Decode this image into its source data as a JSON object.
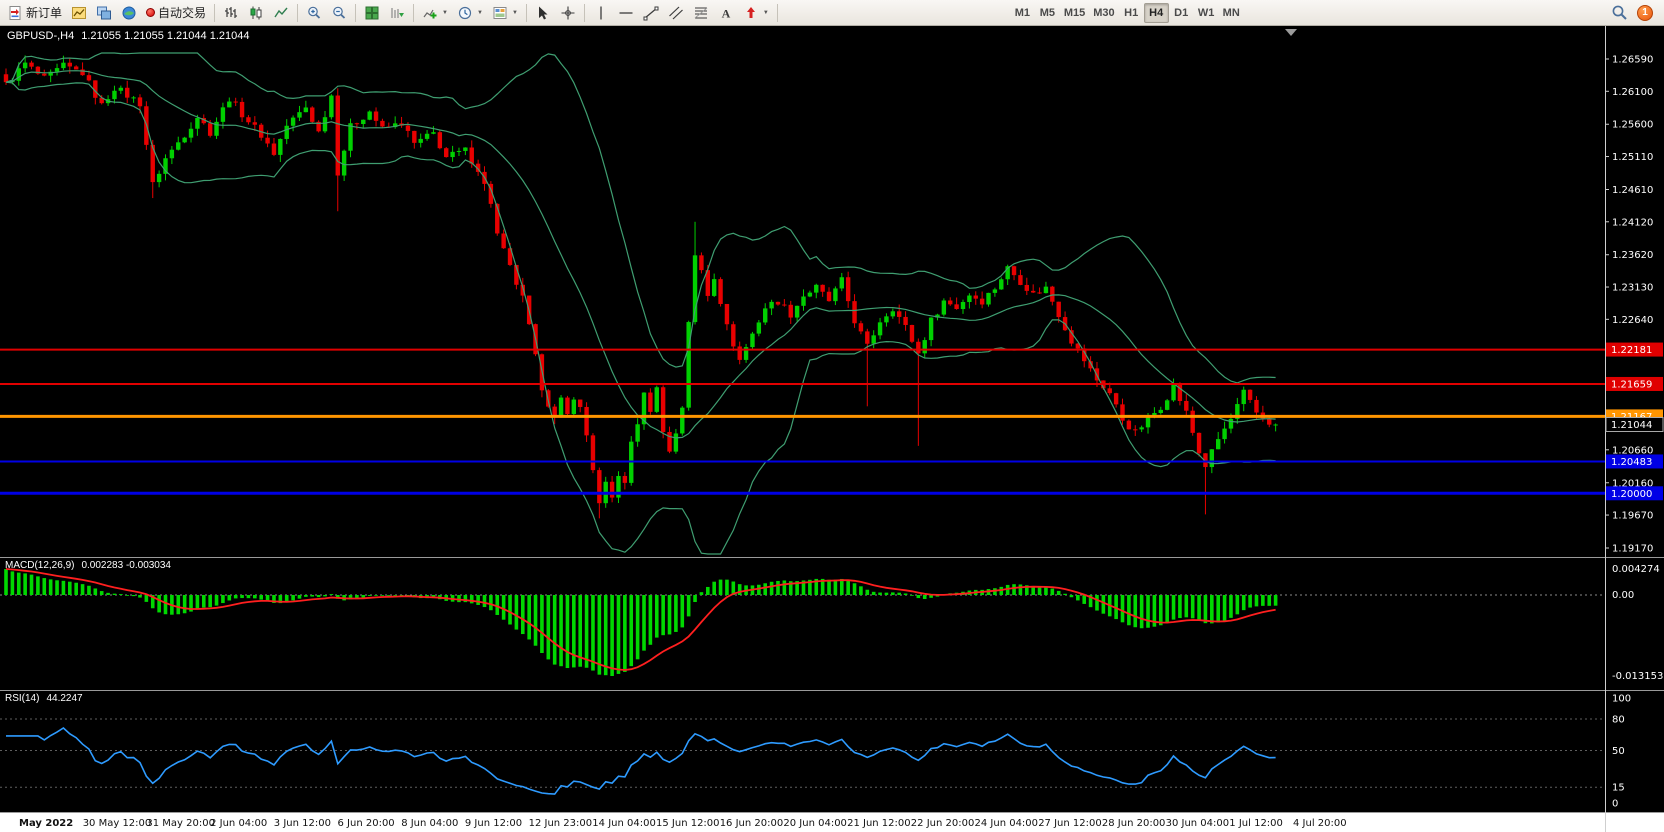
{
  "toolbar": {
    "new_order_label": "新订单",
    "autotrading_label": "自动交易",
    "timeframes": [
      "M1",
      "M5",
      "M15",
      "M30",
      "H1",
      "H4",
      "D1",
      "W1",
      "MN"
    ],
    "selected_timeframe": "H4",
    "notification_count": "1"
  },
  "chart": {
    "symbol_period": "GBPUSD-,H4",
    "ohlc": "1.21055 1.21055 1.21044 1.21044",
    "price_axis": [
      "1.26590",
      "1.26100",
      "1.25600",
      "1.25110",
      "1.24610",
      "1.24120",
      "1.23620",
      "1.23130",
      "1.22640",
      "1.20660",
      "1.20160",
      "1.19670",
      "1.19170"
    ],
    "levels": [
      {
        "price": 1.22181,
        "label": "1.22181",
        "color": "#e00000",
        "width": 2
      },
      {
        "price": 1.21659,
        "label": "1.21659",
        "color": "#e00000",
        "width": 2
      },
      {
        "price": 1.21167,
        "label": "1.21167",
        "color": "#ff9500",
        "width": 3
      },
      {
        "price": 1.20483,
        "label": "1.20483",
        "color": "#0000e6",
        "width": 2
      },
      {
        "price": 1.2,
        "label": "1.20000",
        "color": "#0000e6",
        "width": 3
      }
    ],
    "bid": {
      "price": 1.21044,
      "label": "1.21044"
    },
    "time_axis": [
      "May 2022",
      "30 May 12:00",
      "31 May 20:00",
      "2 Jun 04:00",
      "3 Jun 12:00",
      "6 Jun 20:00",
      "8 Jun 04:00",
      "9 Jun 12:00",
      "12 Jun 23:00",
      "14 Jun 04:00",
      "15 Jun 12:00",
      "16 Jun 20:00",
      "20 Jun 04:00",
      "21 Jun 12:00",
      "22 Jun 20:00",
      "24 Jun 04:00",
      "27 Jun 12:00",
      "28 Jun 20:00",
      "30 Jun 04:00",
      "1 Jul 12:00",
      "4 Jul 20:00"
    ]
  },
  "macd_panel": {
    "label": "MACD(12,26,9)",
    "values": "0.002283 -0.003034",
    "axis": [
      "0.004274",
      "0.00",
      "-0.013153"
    ]
  },
  "rsi_panel": {
    "label": "RSI(14)",
    "value": "44.2247",
    "axis": [
      "100",
      "80",
      "50",
      "15",
      "0"
    ],
    "levels": [
      80,
      50,
      15
    ]
  },
  "colors": {
    "up": "#00d000",
    "down": "#e80000",
    "bollinger": "#3f9e71",
    "macd_hist": "#00d800",
    "macd_signal": "#ff1f1f",
    "rsi": "#2e9bff",
    "axis_text": "#ffffff",
    "time_text": "#111111",
    "chart_bg": "#000000"
  },
  "chart_data": {
    "type": "candlestick",
    "symbol": "GBPUSD",
    "period": "H4",
    "ylim": [
      1.1917,
      1.2659
    ],
    "current_price": 1.21044,
    "candle_count": 200,
    "noise": 0.0012,
    "left_fade": 0.0042,
    "bollinger": {
      "period": 20,
      "deviation": 2
    },
    "macd": {
      "fast": 12,
      "slow": 26,
      "signal": 9
    },
    "rsi_period": 14,
    "macd_axis_range": [
      -0.013153,
      0.004274
    ],
    "anchors": [
      [
        0,
        1.262
      ],
      [
        3,
        1.2652
      ],
      [
        6,
        1.2628
      ],
      [
        9,
        1.2648
      ],
      [
        12,
        1.2638
      ],
      [
        15,
        1.2588
      ],
      [
        17,
        1.2616
      ],
      [
        21,
        1.2592
      ],
      [
        23,
        1.2468
      ],
      [
        25,
        1.2508
      ],
      [
        28,
        1.2545
      ],
      [
        30,
        1.2572
      ],
      [
        32,
        1.2548
      ],
      [
        35,
        1.26
      ],
      [
        37,
        1.2576
      ],
      [
        40,
        1.2544
      ],
      [
        42,
        1.2516
      ],
      [
        44,
        1.2558
      ],
      [
        47,
        1.2586
      ],
      [
        49,
        1.2548
      ],
      [
        51,
        1.2604
      ],
      [
        52,
        1.2488
      ],
      [
        54,
        1.2556
      ],
      [
        57,
        1.258
      ],
      [
        59,
        1.2552
      ],
      [
        62,
        1.2562
      ],
      [
        64,
        1.253
      ],
      [
        67,
        1.2546
      ],
      [
        69,
        1.251
      ],
      [
        72,
        1.252
      ],
      [
        74,
        1.2492
      ],
      [
        76,
        1.2442
      ],
      [
        77,
        1.2392
      ],
      [
        79,
        1.2342
      ],
      [
        81,
        1.2295
      ],
      [
        82,
        1.2252
      ],
      [
        83,
        1.2205
      ],
      [
        84,
        1.2162
      ],
      [
        86,
        1.2112
      ],
      [
        87,
        1.214
      ],
      [
        88,
        1.2118
      ],
      [
        89,
        1.2148
      ],
      [
        90,
        1.2128
      ],
      [
        91,
        1.2088
      ],
      [
        92,
        1.2038
      ],
      [
        93,
        1.1982
      ],
      [
        94,
        1.2012
      ],
      [
        95,
        1.1992
      ],
      [
        96,
        1.203
      ],
      [
        97,
        1.2012
      ],
      [
        98,
        1.2078
      ],
      [
        99,
        1.2108
      ],
      [
        100,
        1.2148
      ],
      [
        101,
        1.2128
      ],
      [
        102,
        1.2158
      ],
      [
        103,
        1.2098
      ],
      [
        104,
        1.2062
      ],
      [
        105,
        1.2092
      ],
      [
        106,
        1.2132
      ],
      [
        107,
        1.2262
      ],
      [
        108,
        1.2358
      ],
      [
        109,
        1.2338
      ],
      [
        110,
        1.2302
      ],
      [
        111,
        1.233
      ],
      [
        112,
        1.2292
      ],
      [
        113,
        1.2252
      ],
      [
        115,
        1.2202
      ],
      [
        117,
        1.2242
      ],
      [
        119,
        1.2282
      ],
      [
        121,
        1.2292
      ],
      [
        123,
        1.2272
      ],
      [
        125,
        1.23
      ],
      [
        127,
        1.2312
      ],
      [
        129,
        1.2292
      ],
      [
        131,
        1.2322
      ],
      [
        133,
        1.2262
      ],
      [
        135,
        1.2222
      ],
      [
        137,
        1.2262
      ],
      [
        139,
        1.2282
      ],
      [
        141,
        1.2252
      ],
      [
        143,
        1.2212
      ],
      [
        145,
        1.2262
      ],
      [
        147,
        1.2292
      ],
      [
        149,
        1.2282
      ],
      [
        151,
        1.2302
      ],
      [
        153,
        1.2292
      ],
      [
        155,
        1.2312
      ],
      [
        157,
        1.2342
      ],
      [
        159,
        1.2322
      ],
      [
        161,
        1.2302
      ],
      [
        163,
        1.2312
      ],
      [
        165,
        1.2272
      ],
      [
        167,
        1.2232
      ],
      [
        169,
        1.2202
      ],
      [
        171,
        1.2172
      ],
      [
        173,
        1.2152
      ],
      [
        175,
        1.2112
      ],
      [
        177,
        1.2092
      ],
      [
        179,
        1.2112
      ],
      [
        181,
        1.2132
      ],
      [
        183,
        1.2162
      ],
      [
        185,
        1.2122
      ],
      [
        187,
        1.2062
      ],
      [
        188,
        1.2042
      ],
      [
        190,
        1.2082
      ],
      [
        192,
        1.2112
      ],
      [
        194,
        1.2152
      ],
      [
        196,
        1.2122
      ],
      [
        198,
        1.2108
      ],
      [
        199,
        1.21044
      ]
    ],
    "wick_overrides": [
      {
        "i": 23,
        "low": 1.2448
      },
      {
        "i": 52,
        "low": 1.2428
      },
      {
        "i": 93,
        "low": 1.1962
      },
      {
        "i": 108,
        "high": 1.2412
      },
      {
        "i": 135,
        "low": 1.2132
      },
      {
        "i": 143,
        "low": 1.2072
      },
      {
        "i": 188,
        "low": 1.1968
      }
    ]
  }
}
